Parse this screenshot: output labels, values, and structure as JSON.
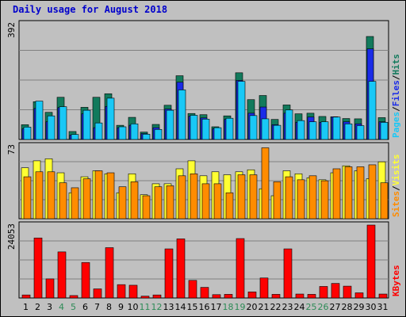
{
  "title": "Daily usage for August 2018",
  "colors": {
    "pages": "#19c8f6",
    "files": "#1a2be8",
    "hits": "#127a5c",
    "sites": "#ff8c00",
    "visits": "#ffff33",
    "kbytes": "#ff0000",
    "weekday_label": "#000000",
    "weekend_label": "#2e8b57"
  },
  "chart_data": [
    {
      "type": "bar",
      "panel": "hits-files-pages",
      "y_max_label": "392",
      "ylim": [
        0,
        392
      ],
      "legend": [
        "Pages",
        "Files",
        "Hits"
      ],
      "legend_separator": "/",
      "categories": [
        "1",
        "2",
        "3",
        "4",
        "5",
        "6",
        "7",
        "8",
        "9",
        "10",
        "11",
        "12",
        "13",
        "14",
        "15",
        "16",
        "17",
        "18",
        "19",
        "20",
        "21",
        "22",
        "23",
        "24",
        "25",
        "26",
        "27",
        "28",
        "29",
        "30",
        "31"
      ],
      "weekend_days": [
        "4",
        "5",
        "11",
        "12",
        "18",
        "19",
        "25",
        "26"
      ],
      "series": [
        {
          "name": "Hits",
          "values": [
            50,
            128,
            92,
            143,
            27,
            109,
            143,
            155,
            48,
            75,
            25,
            51,
            116,
            216,
            88,
            84,
            43,
            80,
            226,
            135,
            149,
            68,
            117,
            87,
            89,
            78,
            77,
            71,
            70,
            349,
            74
          ]
        },
        {
          "name": "Files",
          "values": [
            36,
            105,
            60,
            108,
            15,
            87,
            40,
            112,
            40,
            48,
            20,
            40,
            103,
            194,
            79,
            73,
            36,
            68,
            200,
            89,
            110,
            50,
            89,
            58,
            76,
            58,
            77,
            60,
            53,
            307,
            60
          ]
        },
        {
          "name": "Pages",
          "values": [
            42,
            130,
            80,
            111,
            17,
            99,
            56,
            140,
            43,
            53,
            18,
            34,
            99,
            168,
            82,
            69,
            40,
            72,
            197,
            81,
            70,
            48,
            100,
            64,
            60,
            60,
            76,
            53,
            47,
            197,
            58
          ]
        }
      ]
    },
    {
      "type": "bar",
      "panel": "visits-sites",
      "y_max_label": "73",
      "ylim": [
        0,
        73
      ],
      "legend": [
        "Sites",
        "Visits"
      ],
      "legend_separator": "/",
      "categories": [
        "1",
        "2",
        "3",
        "4",
        "5",
        "6",
        "7",
        "8",
        "9",
        "10",
        "11",
        "12",
        "13",
        "14",
        "15",
        "16",
        "17",
        "18",
        "19",
        "20",
        "21",
        "22",
        "23",
        "24",
        "25",
        "26",
        "27",
        "28",
        "29",
        "30",
        "31"
      ],
      "series": [
        {
          "name": "Visits",
          "values": [
            51,
            58,
            60,
            46,
            26,
            42,
            48,
            45,
            26,
            45,
            24,
            35,
            35,
            50,
            58,
            43,
            47,
            44,
            47,
            49,
            30,
            23,
            48,
            45,
            41,
            39,
            46,
            53,
            48,
            40,
            57
          ]
        },
        {
          "name": "Sites",
          "values": [
            42,
            47,
            47,
            36,
            31,
            40,
            48,
            46,
            32,
            37,
            23,
            32,
            33,
            43,
            45,
            35,
            35,
            26,
            44,
            44,
            71,
            37,
            42,
            39,
            43,
            38,
            50,
            52,
            52,
            54,
            36
          ]
        }
      ]
    },
    {
      "type": "bar",
      "panel": "kbytes",
      "y_max_label": "24053",
      "ylim": [
        0,
        24053
      ],
      "legend": [
        "KBytes"
      ],
      "categories": [
        "1",
        "2",
        "3",
        "4",
        "5",
        "6",
        "7",
        "8",
        "9",
        "10",
        "11",
        "12",
        "13",
        "14",
        "15",
        "16",
        "17",
        "18",
        "19",
        "20",
        "21",
        "22",
        "23",
        "24",
        "25",
        "26",
        "27",
        "28",
        "29",
        "30",
        "31"
      ],
      "series": [
        {
          "name": "KBytes",
          "values": [
            1000,
            19800,
            6300,
            15200,
            800,
            11700,
            3000,
            16600,
            4400,
            4200,
            600,
            1000,
            16200,
            19500,
            5800,
            3500,
            1100,
            1200,
            19600,
            2000,
            6600,
            1200,
            16200,
            1300,
            1200,
            3800,
            4800,
            3900,
            1700,
            24053,
            1300
          ]
        }
      ]
    }
  ]
}
